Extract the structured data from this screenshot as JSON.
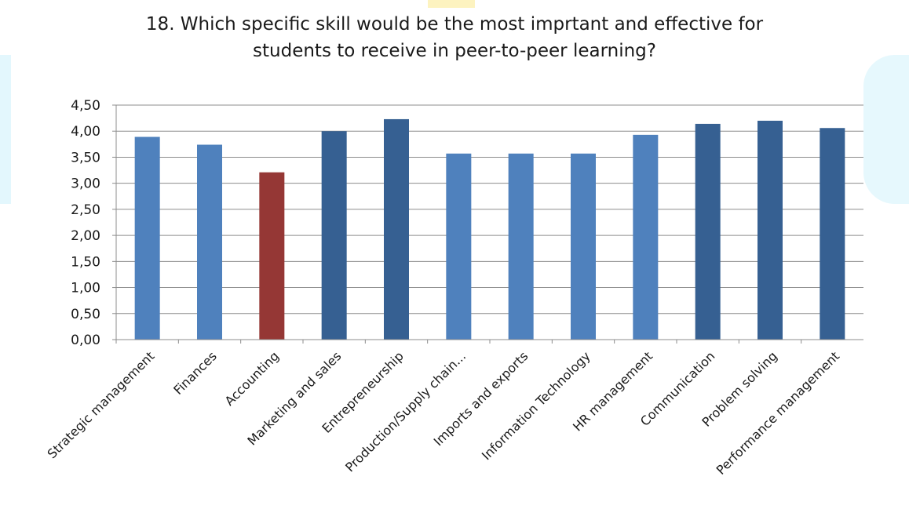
{
  "chart_data": {
    "type": "bar",
    "title_lines": [
      "18. Which specific skill would be the most imprtant and effective for",
      "students to receive in peer-to-peer learning?"
    ],
    "categories": [
      "Strategic management",
      "Finances",
      "Accounting",
      "Marketing and sales",
      "Entrepreneurship",
      "Production/Supply chain...",
      "Imports and exports",
      "Information Technology",
      "HR management",
      "Communication",
      "Problem solving",
      "Performance management"
    ],
    "values": [
      3.89,
      3.74,
      3.21,
      4.0,
      4.23,
      3.57,
      3.57,
      3.57,
      3.93,
      4.14,
      4.2,
      4.06
    ],
    "bar_colors": [
      "#4f81bd",
      "#4f81bd",
      "#953735",
      "#366092",
      "#366092",
      "#4f81bd",
      "#4f81bd",
      "#4f81bd",
      "#4f81bd",
      "#366092",
      "#366092",
      "#366092"
    ],
    "yticks": [
      "0,00",
      "0,50",
      "1,00",
      "1,50",
      "2,00",
      "2,50",
      "3,00",
      "3,50",
      "4,00",
      "4,50"
    ],
    "ylim": [
      0,
      4.5
    ],
    "grid": true,
    "legend": "none"
  }
}
